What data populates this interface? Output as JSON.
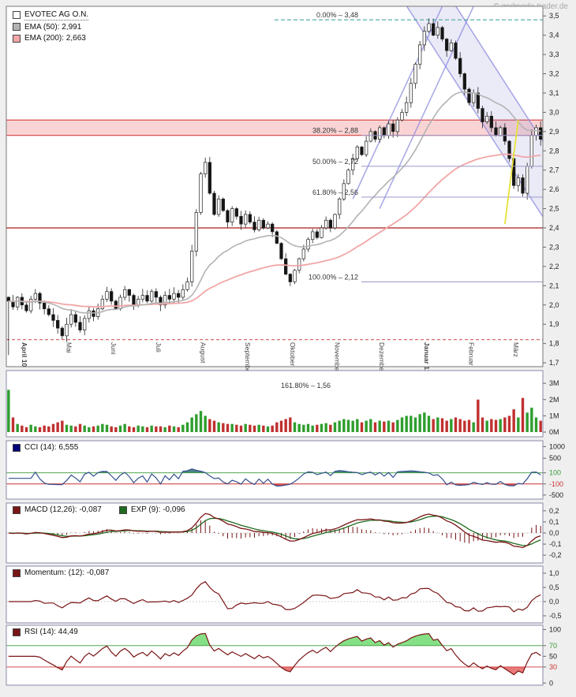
{
  "watermark": "© godmode-trader.de",
  "main_legend": {
    "title": "EVOTEC AG O.N.",
    "ema50": "EMA (50): 2,991",
    "ema200": "EMA (200): 2,663"
  },
  "panel_legends": {
    "cci": "CCI (14): 6,555",
    "macd": "MACD (12,26): -0,087",
    "exp": "EXP (9): -0,096",
    "momentum": "Momentum: (12): -0,087",
    "rsi": "RSI (14): 44,49"
  },
  "colors": {
    "up_candle": "#ffffff",
    "down_candle": "#151515",
    "ema50": "#b3b3b3",
    "ema200": "#f2a6a6",
    "cci_line": "#33518f",
    "cci_swatch": "#00007a",
    "macd_line": "#7a1515",
    "exp_line": "#1f6b1f",
    "momentum_line": "#7a1515",
    "rsi_line": "#7a1515",
    "volume_up": "#2e9e2e",
    "volume_down": "#c03030",
    "fib_line": "#9999cc",
    "trend_line": "#8888dd",
    "band_fill": "rgba(230,60,60,0.22)",
    "band_border": "#cc2a2a",
    "support": "#b03030",
    "dashed_low": "#cc4444",
    "dashed_top": "#2f9e8f",
    "highlight": "#e8e13a",
    "tick_green": "#3a9a3a",
    "tick_red": "#cc3333"
  },
  "chart_data": {
    "type": "candlestick",
    "title": "EVOTEC AG O.N.",
    "months": [
      {
        "label": "April 10",
        "start": 0,
        "bold": true
      },
      {
        "label": "Mai",
        "start": 10,
        "bold": false
      },
      {
        "label": "Juni",
        "start": 20,
        "bold": false
      },
      {
        "label": "Juli",
        "start": 30,
        "bold": false
      },
      {
        "label": "August",
        "start": 40,
        "bold": false
      },
      {
        "label": "September",
        "start": 50,
        "bold": false
      },
      {
        "label": "Oktober",
        "start": 60,
        "bold": false
      },
      {
        "label": "November",
        "start": 70,
        "bold": false
      },
      {
        "label": "Dezember",
        "start": 80,
        "bold": false
      },
      {
        "label": "Januar 11",
        "start": 90,
        "bold": true
      },
      {
        "label": "Februar",
        "start": 100,
        "bold": false
      },
      {
        "label": "März",
        "start": 110,
        "bold": false
      }
    ],
    "y_axis": {
      "min": 1.7,
      "max": 3.5,
      "step": 0.1,
      "labels": [
        "3,5",
        "3,4",
        "3,3",
        "3,2",
        "3,1",
        "3,0",
        "2,9",
        "2,8",
        "2,7",
        "2,6",
        "2,5",
        "2,4",
        "2,3",
        "2,2",
        "2,1",
        "2,0",
        "1,9",
        "1,8",
        "1,7"
      ]
    },
    "closes": [
      2.02,
      1.99,
      2.04,
      2.0,
      1.97,
      2.03,
      2.06,
      2.01,
      1.98,
      1.95,
      1.92,
      1.88,
      1.84,
      1.9,
      1.95,
      1.91,
      1.87,
      1.93,
      1.97,
      1.94,
      1.98,
      2.03,
      2.07,
      2.02,
      1.98,
      2.04,
      2.08,
      2.05,
      2.0,
      2.03,
      2.05,
      2.02,
      2.07,
      2.04,
      2.0,
      2.05,
      2.03,
      2.06,
      2.04,
      2.08,
      2.12,
      2.28,
      2.48,
      2.68,
      2.74,
      2.58,
      2.47,
      2.55,
      2.49,
      2.43,
      2.5,
      2.46,
      2.42,
      2.47,
      2.43,
      2.39,
      2.44,
      2.4,
      2.42,
      2.38,
      2.32,
      2.24,
      2.16,
      2.12,
      2.18,
      2.24,
      2.29,
      2.34,
      2.38,
      2.35,
      2.4,
      2.44,
      2.4,
      2.47,
      2.55,
      2.63,
      2.7,
      2.76,
      2.82,
      2.78,
      2.85,
      2.9,
      2.86,
      2.92,
      2.88,
      2.94,
      2.9,
      2.96,
      3.0,
      3.05,
      3.15,
      3.25,
      3.35,
      3.42,
      3.46,
      3.4,
      3.44,
      3.38,
      3.32,
      3.36,
      3.28,
      3.2,
      3.12,
      3.05,
      3.1,
      3.02,
      2.95,
      2.98,
      2.92,
      2.88,
      2.92,
      2.85,
      2.76,
      2.62,
      2.66,
      2.58,
      2.72,
      2.88,
      2.92,
      2.86
    ],
    "volumes": [
      2.6,
      0.9,
      0.5,
      0.4,
      0.3,
      0.45,
      0.35,
      0.3,
      0.4,
      0.35,
      0.5,
      0.6,
      0.7,
      0.45,
      0.4,
      0.35,
      0.5,
      0.4,
      0.3,
      0.35,
      0.4,
      0.5,
      0.45,
      0.35,
      0.3,
      0.4,
      0.5,
      0.35,
      0.3,
      0.4,
      0.35,
      0.3,
      0.4,
      0.35,
      0.35,
      0.3,
      0.4,
      0.35,
      0.3,
      0.45,
      0.6,
      0.9,
      1.1,
      1.3,
      1.0,
      0.8,
      0.7,
      0.6,
      0.55,
      0.5,
      0.5,
      0.45,
      0.4,
      0.5,
      0.45,
      0.4,
      0.45,
      0.4,
      0.35,
      0.4,
      0.6,
      0.7,
      0.8,
      0.9,
      0.6,
      0.5,
      0.45,
      0.5,
      0.4,
      0.45,
      0.5,
      0.55,
      0.45,
      0.6,
      0.7,
      0.8,
      0.75,
      0.7,
      0.8,
      0.6,
      0.7,
      0.8,
      0.6,
      0.7,
      0.65,
      0.7,
      0.6,
      0.75,
      0.9,
      1.0,
      1.0,
      0.9,
      1.1,
      1.2,
      1.0,
      0.8,
      0.9,
      0.85,
      0.7,
      0.8,
      0.9,
      0.8,
      0.7,
      0.75,
      0.6,
      2.0,
      0.9,
      0.7,
      0.8,
      0.75,
      0.8,
      0.9,
      1.0,
      1.4,
      0.9,
      2.1,
      1.2,
      1.5,
      0.9,
      0.7
    ],
    "fibonacci": [
      {
        "label": "0.00% – 3,48",
        "price": 3.48,
        "dashed": true
      },
      {
        "label": "38.20% – 2,88",
        "price": 2.88
      },
      {
        "label": "50.00% – 2,72",
        "price": 2.72
      },
      {
        "label": "61.80% – 2,56",
        "price": 2.56
      },
      {
        "label": "100.00% – 2,12",
        "price": 2.12
      }
    ],
    "levels": {
      "resistance_band": [
        2.88,
        2.96
      ],
      "support": 2.4,
      "dashed_support": 1.82,
      "dashed_top": 3.48
    },
    "trend_lines": {
      "rising": [
        [
          [
            77,
            2.55
          ],
          [
            99,
            3.65
          ]
        ],
        [
          [
            83,
            2.5
          ],
          [
            105,
            3.6
          ]
        ]
      ],
      "falling": [
        [
          [
            86,
            3.66
          ],
          [
            120,
            2.44
          ]
        ],
        [
          [
            97,
            3.66
          ],
          [
            120,
            2.83
          ]
        ]
      ],
      "channel_fill": [
        [
          86,
          3.66
        ],
        [
          97,
          3.66
        ],
        [
          120,
          2.83
        ],
        [
          120,
          2.44
        ]
      ],
      "highlight": [
        [
          111,
          2.42
        ],
        [
          114,
          2.96
        ]
      ]
    },
    "volume_panel": {
      "label": "161.80% – 1,56",
      "ticks": [
        {
          "label": "3M",
          "v": 3
        },
        {
          "label": "2M",
          "v": 2
        },
        {
          "label": "1M",
          "v": 1
        },
        {
          "label": "0M",
          "v": 0
        }
      ]
    },
    "indicators": {
      "cci": {
        "ticks": [
          {
            "label": "1000",
            "v": 1000
          },
          {
            "label": "500",
            "v": 500
          },
          {
            "label": "100",
            "v": 100,
            "color": "green"
          },
          {
            "label": "-100",
            "v": -100,
            "color": "red"
          },
          {
            "label": "-500",
            "v": -500
          }
        ]
      },
      "macd": {
        "range": [
          -0.27,
          0.27
        ],
        "ticks": [
          {
            "label": "0,2",
            "v": 0.2
          },
          {
            "label": "0,1",
            "v": 0.1
          },
          {
            "label": "0,0",
            "v": 0.0
          },
          {
            "label": "-0,1",
            "v": -0.1
          },
          {
            "label": "-0,2",
            "v": -0.2
          }
        ]
      },
      "momentum": {
        "range": [
          -0.75,
          1.25
        ],
        "ticks": [
          {
            "label": "1,0",
            "v": 1.0
          },
          {
            "label": "0,5",
            "v": 0.5
          },
          {
            "label": "0,0",
            "v": 0.0
          },
          {
            "label": "-0,5",
            "v": -0.5
          }
        ]
      },
      "rsi": {
        "range": [
          -4,
          108
        ],
        "upper": 70,
        "lower": 30,
        "ticks": [
          {
            "label": "100",
            "v": 100
          },
          {
            "label": "70",
            "v": 70,
            "color": "green"
          },
          {
            "label": "50",
            "v": 50
          },
          {
            "label": "30",
            "v": 30,
            "color": "red"
          },
          {
            "label": "0",
            "v": 0
          }
        ]
      }
    }
  }
}
